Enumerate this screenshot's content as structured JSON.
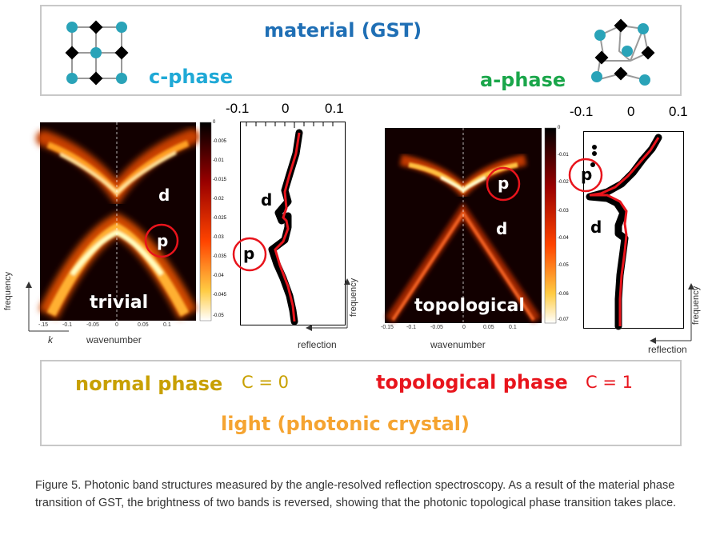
{
  "top_panel": {
    "title": "material (GST)",
    "left_phase": "c-phase",
    "right_phase": "a-phase"
  },
  "left_plot": {
    "label_d": "d",
    "label_p": "p",
    "band_label": "trivial",
    "x_ticks": [
      "-.15",
      "-0.1",
      "-0.05",
      "0",
      "0.05",
      "0.1"
    ],
    "x_axis_label": "wavenumber",
    "k_label": "k",
    "freq_label": "frequency",
    "colorbar_ticks": [
      "0",
      "-0.005",
      "-0.01",
      "-0.015",
      "-0.02",
      "-0.025",
      "-0.03",
      "-0.035",
      "-0.04",
      "-0.045",
      "-0.05"
    ]
  },
  "left_refl": {
    "ticks": [
      "-0.1",
      "0",
      "0.1"
    ],
    "label_d": "d",
    "label_p": "p",
    "axis_label": "reflection",
    "freq_label": "frequency"
  },
  "right_plot": {
    "label_p": "p",
    "label_d": "d",
    "band_label": "topological",
    "x_ticks": [
      "-0.15",
      "-0.1",
      "-0.05",
      "0",
      "0.05",
      "0.1"
    ],
    "x_axis_label": "wavenumber",
    "colorbar_ticks": [
      "0",
      "-0.01",
      "-0.02",
      "-0.03",
      "-0.04",
      "-0.05",
      "-0.06",
      "-0.07"
    ]
  },
  "right_refl": {
    "ticks": [
      "-0.1",
      "0",
      "0.1"
    ],
    "label_p": "p",
    "label_d": "d",
    "axis_label": "reflection",
    "freq_label": "frequency"
  },
  "bottom_panel": {
    "normal_phase": "normal phase",
    "c0": "C = 0",
    "topo_phase": "topological phase",
    "c1": "C = 1",
    "light": "light (photonic crystal)"
  },
  "caption": "Figure 5. Photonic band structures measured by the angle-resolved reflection spectroscopy. As a result of the material phase transition of GST, the brightness of two bands is reversed, showing that the photonic topological phase transition takes place.",
  "colors": {
    "title_blue": "#1f6fb5",
    "cphase_cyan": "#1fa9d6",
    "aphase_green": "#1aa64a",
    "normal_gold": "#c8a000",
    "topo_red": "#e8141c",
    "light_orange": "#f5a431",
    "atom_teal": "#2aa3b8"
  }
}
